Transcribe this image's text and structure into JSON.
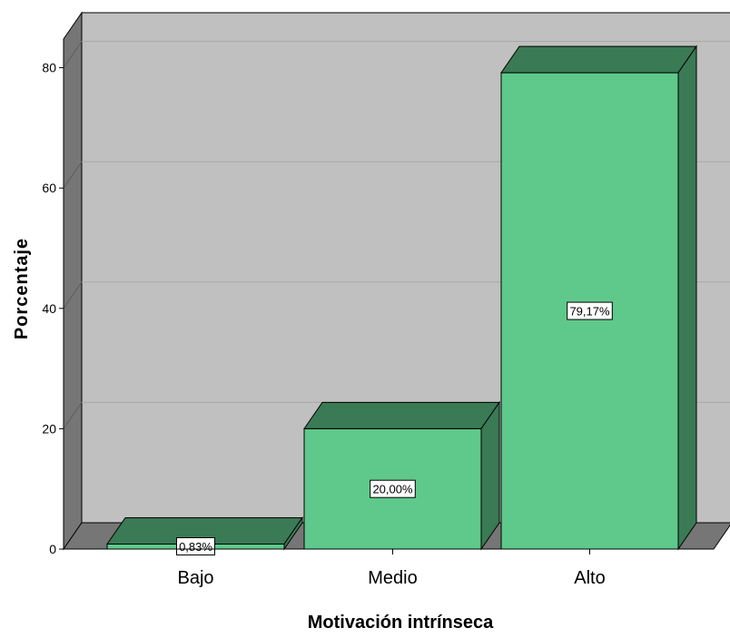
{
  "chart_data": {
    "type": "bar",
    "categories": [
      "Bajo",
      "Medio",
      "Alto"
    ],
    "values": [
      0.83,
      20.0,
      79.17
    ],
    "data_labels": [
      "0,83%",
      "20,00%",
      "79,17%"
    ],
    "xlabel": "Motivación intrínseca",
    "ylabel": "Porcentaje",
    "ylim": [
      0,
      80
    ],
    "yticks": [
      "0",
      "20",
      "40",
      "60",
      "80"
    ],
    "grid": true,
    "style": "3d",
    "colors": {
      "bar_front": "#5ec98a",
      "bar_top": "#3a7a55",
      "bar_side": "#3a7a55",
      "back_wall": "#c0c0c0",
      "side_wall": "#767676",
      "floor": "#767676",
      "gridline": "#a8a8a8"
    }
  }
}
